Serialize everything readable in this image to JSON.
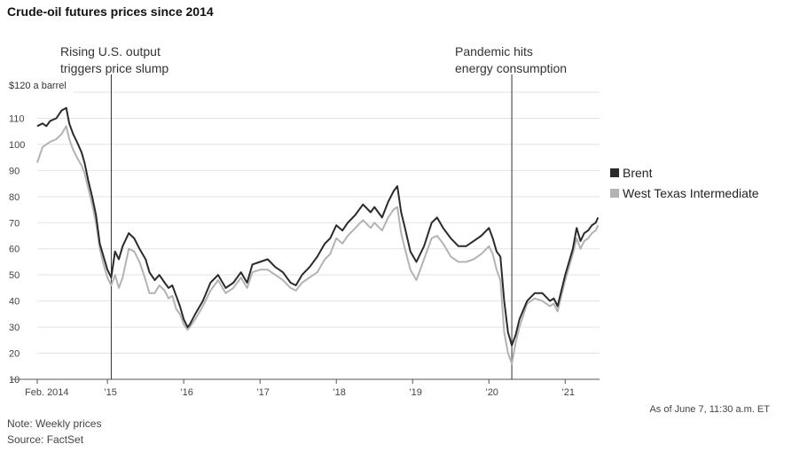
{
  "chart_data": {
    "type": "line",
    "title": "Crude-oil futures prices since 2014",
    "ylabel": "$120 a barrel",
    "ylim": [
      10,
      120
    ],
    "xlim": [
      2014.08,
      2021.45
    ],
    "y_ticks": [
      {
        "value": 110,
        "label": "110"
      },
      {
        "value": 100,
        "label": "100"
      },
      {
        "value": 90,
        "label": "90"
      },
      {
        "value": 80,
        "label": "80"
      },
      {
        "value": 70,
        "label": "70"
      },
      {
        "value": 60,
        "label": "60"
      },
      {
        "value": 50,
        "label": "50"
      },
      {
        "value": 40,
        "label": "40"
      },
      {
        "value": 30,
        "label": "30"
      },
      {
        "value": 20,
        "label": "20"
      },
      {
        "value": 10,
        "label": "10"
      }
    ],
    "x_ticks": [
      {
        "value": 2014.08,
        "label": "Feb. 2014"
      },
      {
        "value": 2015.0,
        "label": "’15"
      },
      {
        "value": 2016.0,
        "label": "’16"
      },
      {
        "value": 2017.0,
        "label": "’17"
      },
      {
        "value": 2018.0,
        "label": "’18"
      },
      {
        "value": 2019.0,
        "label": "’19"
      },
      {
        "value": 2020.0,
        "label": "’20"
      },
      {
        "value": 2021.0,
        "label": "’21"
      }
    ],
    "annotations": [
      {
        "x": 2015.05,
        "lines": [
          "Rising U.S. output",
          "triggers price slump"
        ]
      },
      {
        "x": 2020.3,
        "lines": [
          "Pandemic hits",
          "energy consumption"
        ]
      }
    ],
    "colors": {
      "brent": "#2b2b2b",
      "wti": "#b3b3b3"
    },
    "series": [
      {
        "name": "Brent",
        "x": [
          2014.08,
          2014.15,
          2014.2,
          2014.25,
          2014.33,
          2014.4,
          2014.46,
          2014.5,
          2014.55,
          2014.6,
          2014.66,
          2014.7,
          2014.75,
          2014.8,
          2014.85,
          2014.9,
          2014.95,
          2015.0,
          2015.05,
          2015.1,
          2015.15,
          2015.2,
          2015.28,
          2015.35,
          2015.42,
          2015.5,
          2015.55,
          2015.62,
          2015.68,
          2015.75,
          2015.8,
          2015.85,
          2015.9,
          2015.95,
          2016.0,
          2016.05,
          2016.08,
          2016.15,
          2016.25,
          2016.35,
          2016.45,
          2016.55,
          2016.65,
          2016.75,
          2016.83,
          2016.9,
          2017.0,
          2017.1,
          2017.2,
          2017.3,
          2017.4,
          2017.47,
          2017.55,
          2017.65,
          2017.75,
          2017.85,
          2017.92,
          2018.0,
          2018.08,
          2018.15,
          2018.25,
          2018.35,
          2018.45,
          2018.5,
          2018.6,
          2018.68,
          2018.75,
          2018.8,
          2018.85,
          2018.9,
          2018.97,
          2019.05,
          2019.15,
          2019.25,
          2019.32,
          2019.4,
          2019.5,
          2019.6,
          2019.7,
          2019.8,
          2019.9,
          2020.0,
          2020.05,
          2020.1,
          2020.15,
          2020.2,
          2020.25,
          2020.3,
          2020.35,
          2020.4,
          2020.5,
          2020.6,
          2020.7,
          2020.8,
          2020.85,
          2020.9,
          2021.0,
          2021.05,
          2021.1,
          2021.15,
          2021.2,
          2021.25,
          2021.3,
          2021.35,
          2021.4,
          2021.43
        ],
        "values": [
          107,
          108,
          107,
          109,
          110,
          113,
          114,
          108,
          104,
          101,
          97,
          93,
          86,
          80,
          73,
          62,
          57,
          52,
          49,
          59,
          56,
          61,
          66,
          64,
          60,
          56,
          51,
          48,
          50,
          47,
          45,
          46,
          42,
          38,
          33,
          30,
          31,
          35,
          40,
          47,
          50,
          45,
          47,
          51,
          47,
          54,
          55,
          56,
          53,
          51,
          47,
          46,
          50,
          53,
          57,
          62,
          64,
          69,
          67,
          70,
          73,
          77,
          74,
          76,
          72,
          78,
          82,
          84,
          74,
          68,
          59,
          55,
          61,
          70,
          72,
          68,
          64,
          61,
          61,
          63,
          65,
          68,
          64,
          59,
          57,
          40,
          28,
          23,
          27,
          33,
          40,
          43,
          43,
          40,
          41,
          38,
          50,
          55,
          60,
          68,
          63,
          66,
          67,
          69,
          70,
          72
        ]
      },
      {
        "name": "West Texas Intermediate",
        "x": [
          2014.08,
          2014.15,
          2014.2,
          2014.25,
          2014.33,
          2014.4,
          2014.46,
          2014.5,
          2014.55,
          2014.6,
          2014.66,
          2014.7,
          2014.75,
          2014.8,
          2014.85,
          2014.9,
          2014.95,
          2015.0,
          2015.05,
          2015.1,
          2015.15,
          2015.2,
          2015.28,
          2015.35,
          2015.42,
          2015.5,
          2015.55,
          2015.62,
          2015.68,
          2015.75,
          2015.8,
          2015.85,
          2015.9,
          2015.95,
          2016.0,
          2016.05,
          2016.08,
          2016.15,
          2016.25,
          2016.35,
          2016.45,
          2016.55,
          2016.65,
          2016.75,
          2016.83,
          2016.9,
          2017.0,
          2017.1,
          2017.2,
          2017.3,
          2017.4,
          2017.47,
          2017.55,
          2017.65,
          2017.75,
          2017.85,
          2017.92,
          2018.0,
          2018.08,
          2018.15,
          2018.25,
          2018.35,
          2018.45,
          2018.5,
          2018.6,
          2018.68,
          2018.75,
          2018.8,
          2018.85,
          2018.9,
          2018.97,
          2019.05,
          2019.15,
          2019.25,
          2019.32,
          2019.4,
          2019.5,
          2019.6,
          2019.7,
          2019.8,
          2019.9,
          2020.0,
          2020.05,
          2020.1,
          2020.15,
          2020.2,
          2020.25,
          2020.3,
          2020.35,
          2020.4,
          2020.5,
          2020.6,
          2020.7,
          2020.8,
          2020.85,
          2020.9,
          2021.0,
          2021.05,
          2021.1,
          2021.15,
          2021.2,
          2021.25,
          2021.3,
          2021.35,
          2021.4,
          2021.43
        ],
        "values": [
          93,
          99,
          100,
          101,
          102,
          104,
          107,
          102,
          98,
          95,
          92,
          89,
          83,
          77,
          70,
          60,
          54,
          49,
          46,
          50,
          45,
          49,
          60,
          59,
          55,
          48,
          43,
          43,
          46,
          44,
          41,
          42,
          37,
          35,
          31,
          29,
          30,
          33,
          38,
          44,
          48,
          43,
          45,
          49,
          45,
          51,
          52,
          52,
          50,
          48,
          45,
          44,
          47,
          49,
          51,
          56,
          58,
          64,
          62,
          65,
          68,
          71,
          68,
          70,
          67,
          72,
          75,
          76,
          66,
          60,
          52,
          48,
          56,
          64,
          65,
          62,
          57,
          55,
          55,
          56,
          58,
          61,
          58,
          52,
          48,
          28,
          20,
          16,
          24,
          30,
          39,
          41,
          40,
          38,
          39,
          36,
          48,
          53,
          58,
          64,
          60,
          63,
          64,
          66,
          67,
          69
        ]
      }
    ]
  },
  "notes": {
    "note": "Note: Weekly prices",
    "source": "Source: FactSet",
    "as_of": "As of June 7, 11:30 a.m. ET"
  }
}
